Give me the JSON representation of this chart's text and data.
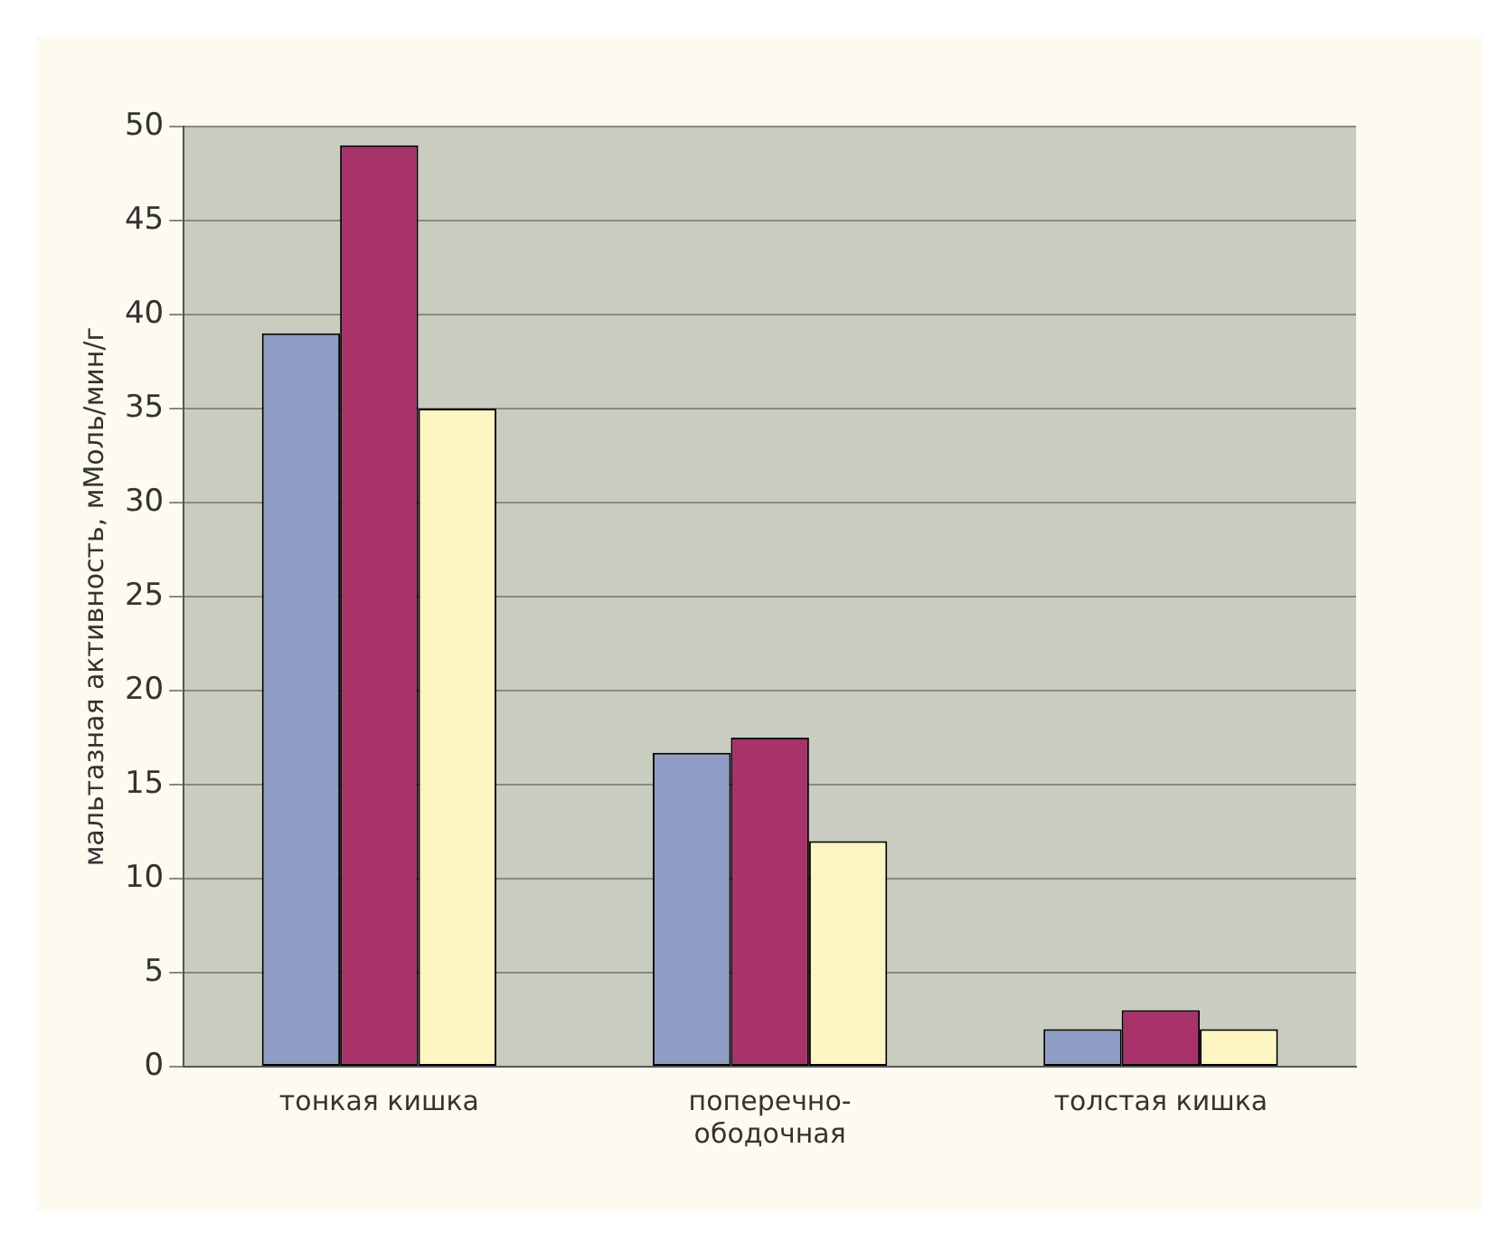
{
  "chart_data": {
    "type": "bar",
    "ylabel": "мальтазная активность, мМоль/мин/г",
    "categories": [
      "тонкая кишка",
      "поперечно-ободочная",
      "толстая кишка"
    ],
    "series": [
      {
        "color": "#8f9dc4",
        "values": [
          39,
          16.7,
          2
        ]
      },
      {
        "color": "#a8326a",
        "values": [
          49,
          17.5,
          3
        ]
      },
      {
        "color": "#fdf6c3",
        "values": [
          35,
          12,
          2
        ]
      }
    ],
    "ylim": [
      0,
      50
    ],
    "yticks": [
      0,
      5,
      10,
      15,
      20,
      25,
      30,
      35,
      40,
      45,
      50
    ],
    "grid": "y",
    "legend": false
  }
}
